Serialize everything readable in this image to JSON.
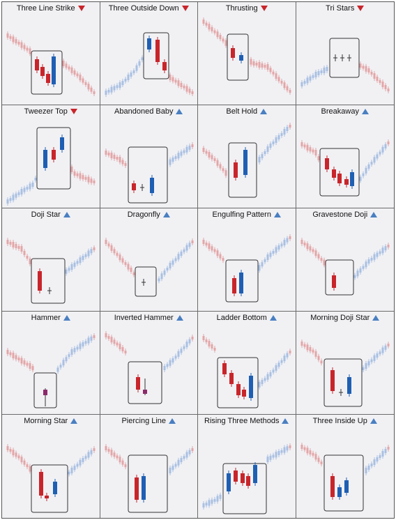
{
  "colors": {
    "bear": "#c8252b",
    "bull": "#1f5fb3",
    "bear_faint": "#e3a6a8",
    "bull_faint": "#a9c0e2",
    "box": "#333333",
    "background": "#f1f1f4"
  },
  "patterns": [
    {
      "name": "Three Line Strike",
      "direction": "down",
      "icon": "triangle-down-icon"
    },
    {
      "name": "Three Outside Down",
      "direction": "down",
      "icon": "triangle-down-icon"
    },
    {
      "name": "Thrusting",
      "direction": "down",
      "icon": "triangle-down-icon"
    },
    {
      "name": "Tri Stars",
      "direction": "down",
      "icon": "triangle-down-icon"
    },
    {
      "name": "Tweezer Top",
      "direction": "down",
      "icon": "triangle-down-icon"
    },
    {
      "name": "Abandoned Baby",
      "direction": "up",
      "icon": "triangle-up-icon"
    },
    {
      "name": "Belt Hold",
      "direction": "up",
      "icon": "triangle-up-icon"
    },
    {
      "name": "Breakaway",
      "direction": "up",
      "icon": "triangle-up-icon"
    },
    {
      "name": "Doji Star",
      "direction": "up",
      "icon": "triangle-up-icon"
    },
    {
      "name": "Dragonfly",
      "direction": "up",
      "icon": "triangle-up-icon"
    },
    {
      "name": "Engulfing Pattern",
      "direction": "up",
      "icon": "triangle-up-icon"
    },
    {
      "name": "Gravestone Doji",
      "direction": "up",
      "icon": "triangle-up-icon"
    },
    {
      "name": "Hammer",
      "direction": "up",
      "icon": "triangle-up-icon"
    },
    {
      "name": "Inverted Hammer",
      "direction": "up",
      "icon": "triangle-up-icon"
    },
    {
      "name": "Ladder Bottom",
      "direction": "up",
      "icon": "triangle-up-icon"
    },
    {
      "name": "Morning Doji Star",
      "direction": "up",
      "icon": "triangle-up-icon"
    },
    {
      "name": "Morning Star",
      "direction": "up",
      "icon": "triangle-up-icon"
    },
    {
      "name": "Piercing Line",
      "direction": "up",
      "icon": "triangle-up-icon"
    },
    {
      "name": "Rising Three Methods",
      "direction": "up",
      "icon": "triangle-up-icon"
    },
    {
      "name": "Three Inside Up",
      "direction": "up",
      "icon": "triangle-up-icon"
    }
  ]
}
